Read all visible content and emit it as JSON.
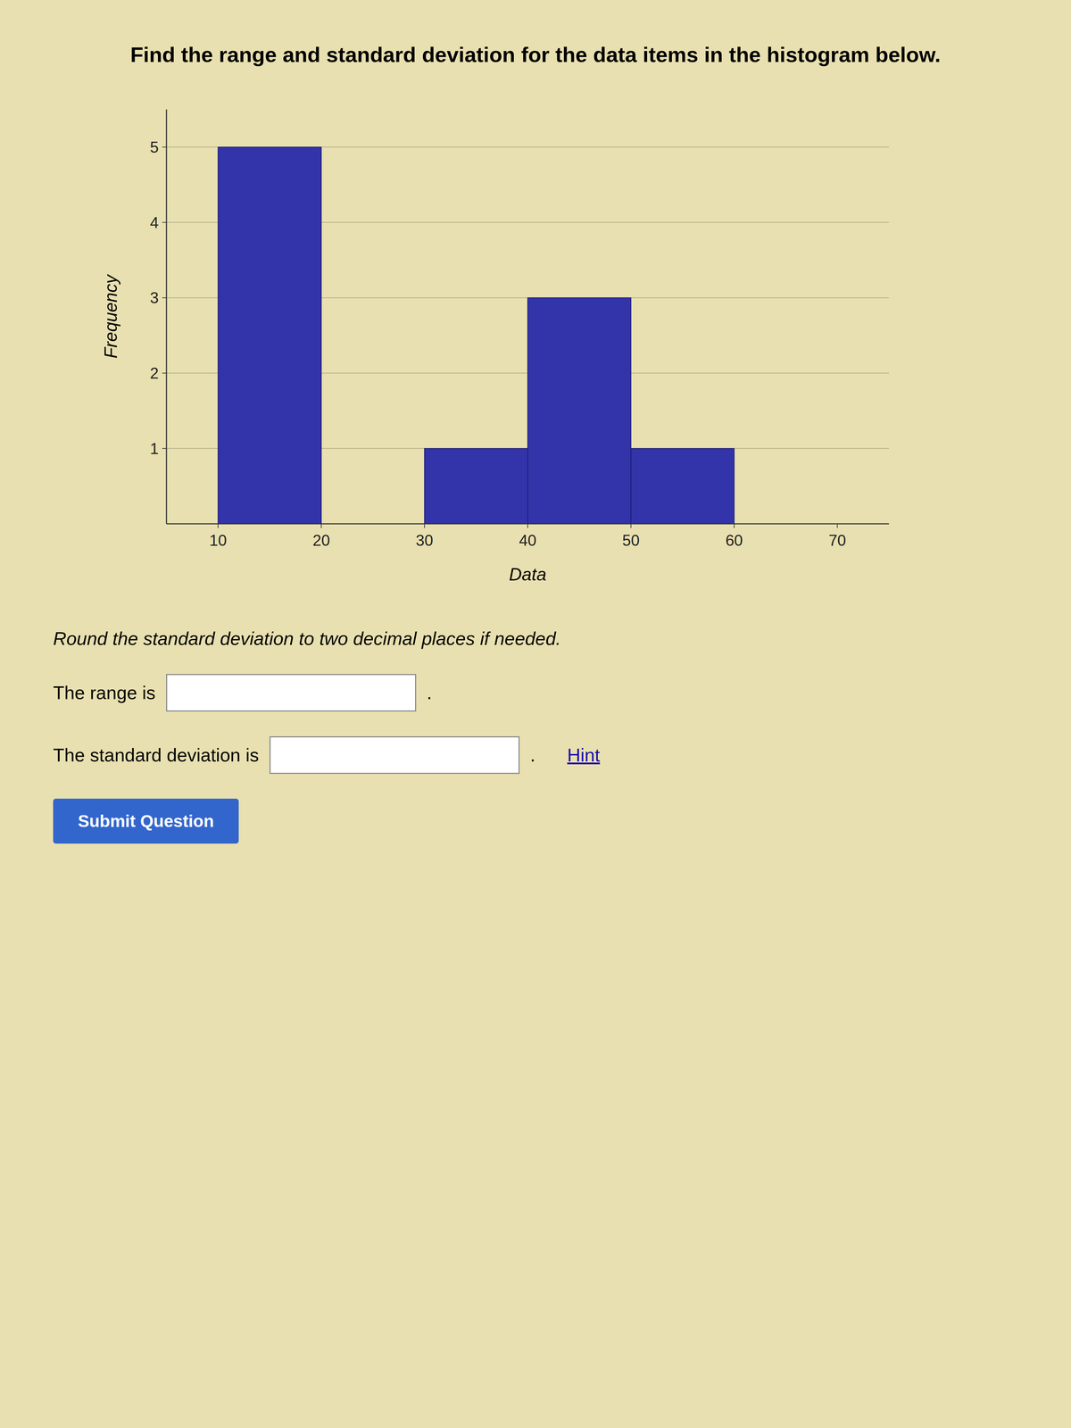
{
  "chart_data": {
    "type": "histogram",
    "title": "Find the range and standard deviation for the data items in the histogram below.",
    "bins": [
      10,
      20,
      30,
      40,
      50,
      60,
      70
    ],
    "values": [
      5,
      0,
      1,
      3,
      1,
      0
    ],
    "color": "#3333AA",
    "xlabel": "Data",
    "ylabel": "Frequency",
    "xlim": [
      5,
      75
    ],
    "ylim": [
      0,
      5.5
    ],
    "xticks": [
      10,
      20,
      30,
      40,
      50,
      60,
      70
    ],
    "yticks": [
      1,
      2,
      3,
      4,
      5
    ],
    "grid": true,
    "annotations": [
      "Round the standard deviation to two decimal places if needed.",
      "The range is",
      ".",
      "The standard deviation is",
      ".",
      "Hint",
      "Submit Question"
    ]
  }
}
